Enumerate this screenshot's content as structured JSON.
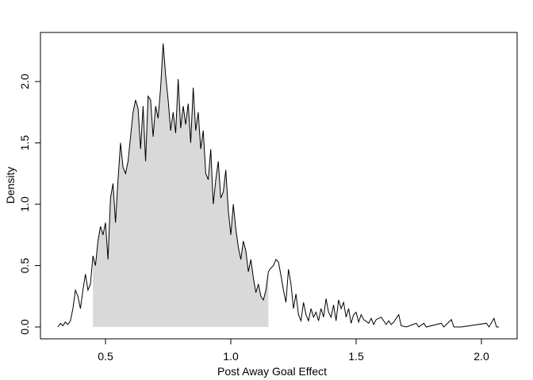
{
  "chart_data": {
    "type": "density",
    "x_label": "Post Away Goal Effect",
    "y_label": "Density",
    "x": [
      0.31,
      0.32,
      0.33,
      0.34,
      0.35,
      0.36,
      0.37,
      0.38,
      0.39,
      0.4,
      0.41,
      0.42,
      0.43,
      0.44,
      0.45,
      0.46,
      0.47,
      0.48,
      0.49,
      0.5,
      0.51,
      0.52,
      0.53,
      0.54,
      0.55,
      0.56,
      0.57,
      0.58,
      0.59,
      0.6,
      0.61,
      0.62,
      0.63,
      0.64,
      0.65,
      0.66,
      0.67,
      0.68,
      0.69,
      0.7,
      0.71,
      0.72,
      0.73,
      0.74,
      0.75,
      0.76,
      0.77,
      0.78,
      0.79,
      0.8,
      0.81,
      0.82,
      0.83,
      0.84,
      0.85,
      0.86,
      0.87,
      0.88,
      0.89,
      0.9,
      0.91,
      0.92,
      0.93,
      0.94,
      0.95,
      0.96,
      0.97,
      0.98,
      0.99,
      1.0,
      1.01,
      1.02,
      1.03,
      1.04,
      1.05,
      1.06,
      1.07,
      1.08,
      1.09,
      1.1,
      1.11,
      1.12,
      1.13,
      1.14,
      1.15,
      1.16,
      1.17,
      1.18,
      1.19,
      1.2,
      1.21,
      1.22,
      1.23,
      1.24,
      1.25,
      1.26,
      1.27,
      1.28,
      1.29,
      1.3,
      1.31,
      1.32,
      1.33,
      1.34,
      1.35,
      1.36,
      1.37,
      1.38,
      1.39,
      1.4,
      1.41,
      1.42,
      1.43,
      1.44,
      1.45,
      1.46,
      1.47,
      1.48,
      1.49,
      1.5,
      1.51,
      1.52,
      1.53,
      1.55,
      1.56,
      1.57,
      1.58,
      1.6,
      1.62,
      1.63,
      1.64,
      1.65,
      1.67,
      1.68,
      1.7,
      1.74,
      1.75,
      1.77,
      1.78,
      1.84,
      1.85,
      1.88,
      1.89,
      1.92,
      2.02,
      2.03,
      2.05,
      2.06,
      2.07
    ],
    "values": [
      0,
      0.03,
      0.01,
      0.04,
      0.02,
      0.05,
      0.15,
      0.3,
      0.25,
      0.15,
      0.3,
      0.43,
      0.3,
      0.35,
      0.58,
      0.5,
      0.7,
      0.82,
      0.75,
      0.85,
      0.55,
      1.05,
      1.17,
      0.85,
      1.2,
      1.5,
      1.3,
      1.25,
      1.35,
      1.55,
      1.75,
      1.85,
      1.78,
      1.45,
      1.8,
      1.35,
      1.88,
      1.85,
      1.55,
      1.8,
      1.7,
      1.95,
      2.31,
      2.05,
      1.85,
      1.6,
      1.75,
      1.58,
      2.02,
      1.62,
      1.8,
      1.65,
      1.82,
      1.5,
      1.95,
      1.6,
      1.75,
      1.45,
      1.6,
      1.25,
      1.2,
      1.45,
      1.0,
      1.2,
      1.35,
      1.05,
      1.1,
      1.28,
      0.95,
      0.75,
      1.0,
      0.8,
      0.65,
      0.55,
      0.7,
      0.62,
      0.45,
      0.55,
      0.4,
      0.28,
      0.35,
      0.25,
      0.22,
      0.3,
      0.45,
      0.48,
      0.5,
      0.55,
      0.53,
      0.42,
      0.3,
      0.2,
      0.47,
      0.35,
      0.15,
      0.27,
      0.1,
      0.05,
      0.2,
      0.1,
      0.05,
      0.15,
      0.08,
      0.12,
      0.05,
      0.15,
      0.08,
      0.23,
      0.12,
      0.08,
      0.18,
      0.05,
      0.22,
      0.15,
      0.2,
      0.08,
      0.15,
      0.03,
      0.1,
      0.12,
      0.04,
      0.1,
      0.06,
      0.03,
      0.07,
      0.02,
      0.06,
      0.08,
      0.02,
      0.05,
      0.02,
      0.04,
      0.1,
      0.01,
      0,
      0.03,
      0,
      0.03,
      0,
      0.03,
      0,
      0.06,
      0,
      0,
      0.03,
      0,
      0.07,
      0,
      0
    ],
    "shade_range": [
      0.45,
      1.15
    ],
    "shade_color": "#d9d9d9",
    "line_color": "#000000",
    "xlim": [
      0.2405,
      2.1424
    ],
    "ylim": [
      -0.0968,
      2.4
    ],
    "xticks": [
      0.5,
      {
        "value": 1,
        "label": "1.0"
      },
      1.5,
      {
        "value": 2,
        "label": "2.0"
      }
    ],
    "yticks": [
      {
        "value": 0,
        "label": "0.0"
      },
      0.5,
      {
        "value": 1,
        "label": "1.0"
      },
      1.5,
      {
        "value": 2,
        "label": "2.0"
      }
    ]
  }
}
